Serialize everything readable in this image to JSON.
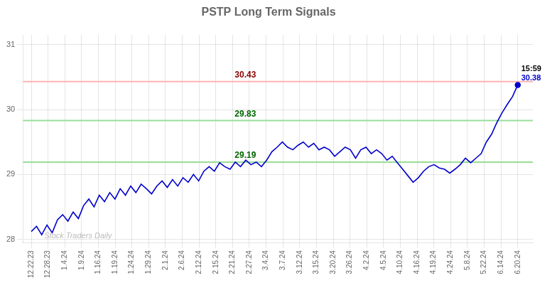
{
  "chart_data": {
    "type": "line",
    "title": "PSTP Long Term Signals",
    "x": [
      0,
      0.3118,
      0.6237,
      0.9355,
      1.2473,
      1.5591,
      1.871,
      2.1828,
      2.4946,
      2.8065,
      3.1183,
      3.4301,
      3.7419,
      4.0538,
      4.3656,
      4.6774,
      4.9892,
      5.3011,
      5.6129,
      5.9247,
      6.2366,
      6.5484,
      6.8602,
      7.172,
      7.4839,
      7.7957,
      8.1075,
      8.4194,
      8.7312,
      9.043,
      9.3548,
      9.6667,
      9.9785,
      10.2903,
      10.6022,
      10.914,
      11.2258,
      11.5376,
      11.8495,
      12.1613,
      12.4731,
      12.7849,
      13.0968,
      13.4086,
      13.7204,
      14.0323,
      14.3441,
      14.6559,
      14.9677,
      15.2796,
      15.5914,
      15.9032,
      16.2151,
      16.5269,
      16.8387,
      17.1505,
      17.4624,
      17.7742,
      18.086,
      18.3978,
      18.7097,
      19.0215,
      19.3333,
      19.6452,
      19.957,
      20.2688,
      20.5806,
      20.8925,
      21.2043,
      21.5161,
      21.828,
      22.1398,
      22.4516,
      22.7634,
      23.0753,
      23.3871,
      23.6989,
      24.0108,
      24.3226,
      24.6344,
      24.9462,
      25.2581,
      25.5699,
      25.8817,
      26.1935,
      26.5054,
      26.8172,
      27.129,
      27.4409,
      27.7527,
      28.0645,
      28.3763,
      28.6882,
      29
    ],
    "series": [
      {
        "color": "#0000cc",
        "values": [
          28.12,
          28.2,
          28.07,
          28.22,
          28.1,
          28.3,
          28.38,
          28.28,
          28.42,
          28.32,
          28.52,
          28.62,
          28.5,
          28.68,
          28.58,
          28.72,
          28.62,
          28.78,
          28.68,
          28.82,
          28.72,
          28.85,
          28.78,
          28.7,
          28.82,
          28.9,
          28.8,
          28.92,
          28.82,
          28.95,
          28.88,
          29.0,
          28.9,
          29.05,
          29.12,
          29.05,
          29.18,
          29.12,
          29.08,
          29.19,
          29.12,
          29.22,
          29.15,
          29.19,
          29.12,
          29.22,
          29.35,
          29.42,
          29.5,
          29.42,
          29.38,
          29.45,
          29.5,
          29.42,
          29.48,
          29.38,
          29.42,
          29.38,
          29.28,
          29.35,
          29.42,
          29.38,
          29.25,
          29.38,
          29.42,
          29.32,
          29.38,
          29.32,
          29.22,
          29.28,
          29.18,
          29.08,
          28.98,
          28.88,
          28.95,
          29.05,
          29.12,
          29.15,
          29.1,
          29.08,
          29.02,
          29.08,
          29.15,
          29.25,
          29.18,
          29.25,
          29.32,
          29.5,
          29.62,
          29.8,
          29.95,
          30.08,
          30.2,
          30.38
        ]
      }
    ],
    "xlim": [
      -0.5,
      29.9
    ],
    "xticks": [
      {
        "value": 0,
        "label": "12.22.23"
      },
      {
        "value": 1,
        "label": "12.28.23"
      },
      {
        "value": 2,
        "label": "1.4.24"
      },
      {
        "value": 3,
        "label": "1.9.24"
      },
      {
        "value": 4,
        "label": "1.16.24"
      },
      {
        "value": 5,
        "label": "1.19.24"
      },
      {
        "value": 6,
        "label": "1.24.24"
      },
      {
        "value": 7,
        "label": "1.29.24"
      },
      {
        "value": 8,
        "label": "2.1.24"
      },
      {
        "value": 9,
        "label": "2.6.24"
      },
      {
        "value": 10,
        "label": "2.12.24"
      },
      {
        "value": 11,
        "label": "2.15.24"
      },
      {
        "value": 12,
        "label": "2.21.24"
      },
      {
        "value": 13,
        "label": "2.27.24"
      },
      {
        "value": 14,
        "label": "3.4.24"
      },
      {
        "value": 15,
        "label": "3.7.24"
      },
      {
        "value": 16,
        "label": "3.12.24"
      },
      {
        "value": 17,
        "label": "3.15.24"
      },
      {
        "value": 18,
        "label": "3.20.24"
      },
      {
        "value": 19,
        "label": "3.26.24"
      },
      {
        "value": 20,
        "label": "4.2.24"
      },
      {
        "value": 21,
        "label": "4.5.24"
      },
      {
        "value": 22,
        "label": "4.10.24"
      },
      {
        "value": 23,
        "label": "4.16.24"
      },
      {
        "value": 24,
        "label": "4.19.24"
      },
      {
        "value": 25,
        "label": "4.24.24"
      },
      {
        "value": 26,
        "label": "5.8.24"
      },
      {
        "value": 27,
        "label": "5.22.24"
      },
      {
        "value": 28,
        "label": "6.14.24"
      },
      {
        "value": 29,
        "label": "6.20.24"
      }
    ],
    "ylim": [
      27.95,
      31.15
    ],
    "yticks": [
      28,
      29,
      30,
      31
    ],
    "grid": true,
    "hlines": [
      {
        "value": 30.43,
        "color": "#ffb3b3",
        "label": {
          "text": "30.43",
          "color": "#880000"
        }
      },
      {
        "value": 29.83,
        "color": "#99dd99",
        "label": {
          "text": "29.83",
          "color": "#006600"
        }
      },
      {
        "value": 29.19,
        "color": "#99dd99",
        "label": {
          "text": "29.19",
          "color": "#006600"
        }
      }
    ],
    "end_labels": [
      {
        "text": "15:59",
        "color": "#000000"
      },
      {
        "text": "30.38",
        "color": "#0000cc"
      }
    ],
    "watermark": {
      "text": "Stock Traders Daily",
      "color": "#bbbbbb"
    }
  }
}
